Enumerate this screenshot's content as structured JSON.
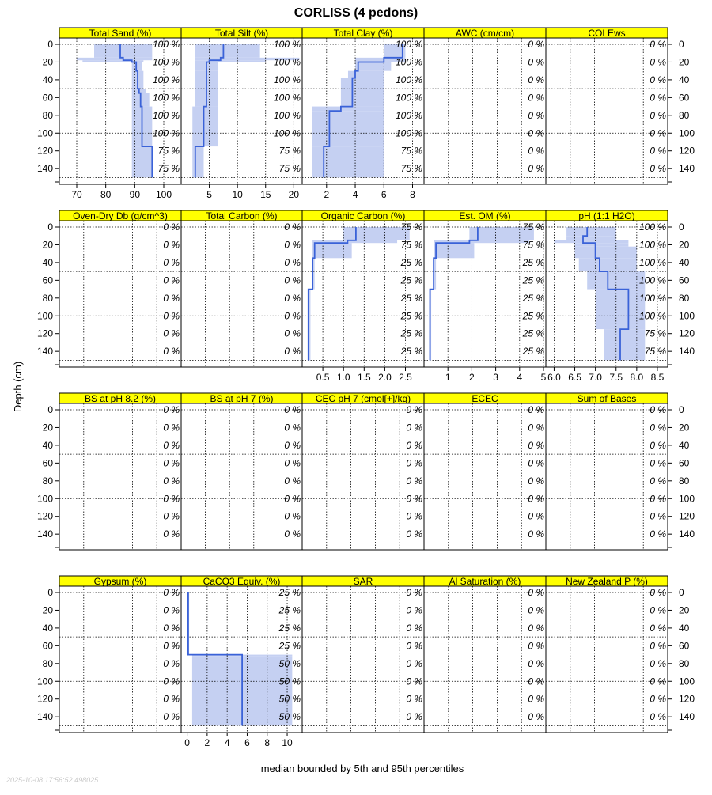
{
  "page": {
    "title": "CORLISS (4 pedons)",
    "ylabel": "Depth (cm)",
    "xlabel": "median bounded by 5th and 95th percentiles",
    "timestamp": "2025-10-08 17:56:52.498025"
  },
  "colors": {
    "strip": "#ffff00",
    "band": "#c5d0f2",
    "median": "#3a62d8",
    "grid": "#000000"
  },
  "chart_data": {
    "type": "line",
    "depth_ticks": [
      0,
      20,
      40,
      60,
      80,
      100,
      120,
      140
    ],
    "ylim": [
      0,
      155
    ],
    "depth_rows": [
      0,
      20,
      40,
      60,
      80,
      100,
      120,
      140
    ],
    "rows": [
      {
        "x_axis_side": "bottom",
        "panels": [
          {
            "label": "Total Sand (%)",
            "xlim": [
              64,
              106
            ],
            "xticks": [
              70,
              80,
              90,
              100
            ],
            "pct": [
              "100 %",
              "100 %",
              "100 %",
              "100 %",
              "100 %",
              "100 %",
              "75 %",
              "75 %"
            ],
            "profile": [
              {
                "top": 0,
                "bottom": 3,
                "p05": 76,
                "p50": 85,
                "p95": 96
              },
              {
                "top": 3,
                "bottom": 15,
                "p05": 76,
                "p50": 85,
                "p95": 96
              },
              {
                "top": 15,
                "bottom": 18,
                "p05": 70,
                "p50": 86,
                "p95": 96
              },
              {
                "top": 18,
                "bottom": 20,
                "p05": 72,
                "p50": 89,
                "p95": 93
              },
              {
                "top": 20,
                "bottom": 30,
                "p05": 89,
                "p50": 90.5,
                "p95": 92.5
              },
              {
                "top": 30,
                "bottom": 50,
                "p05": 89,
                "p50": 91,
                "p95": 93
              },
              {
                "top": 50,
                "bottom": 55,
                "p05": 89,
                "p50": 91.5,
                "p95": 94
              },
              {
                "top": 55,
                "bottom": 70,
                "p05": 89,
                "p50": 92,
                "p95": 95
              },
              {
                "top": 70,
                "bottom": 115,
                "p05": 89,
                "p50": 92.5,
                "p95": 96
              },
              {
                "top": 115,
                "bottom": 150,
                "p05": 89,
                "p50": 96,
                "p95": 96
              }
            ]
          },
          {
            "label": "Total Silt (%)",
            "xlim": [
              0,
              21.5
            ],
            "xticks": [
              5,
              10,
              15,
              20
            ],
            "pct": [
              "100 %",
              "100 %",
              "100 %",
              "100 %",
              "100 %",
              "100 %",
              "75 %",
              "75 %"
            ],
            "profile": [
              {
                "top": 0,
                "bottom": 15,
                "p05": 2.5,
                "p50": 7.5,
                "p95": 14
              },
              {
                "top": 15,
                "bottom": 18,
                "p05": 2.5,
                "p50": 7,
                "p95": 21
              },
              {
                "top": 18,
                "bottom": 20,
                "p05": 2.5,
                "p50": 5,
                "p95": 15
              },
              {
                "top": 20,
                "bottom": 30,
                "p05": 2.5,
                "p50": 4.5,
                "p95": 6.5
              },
              {
                "top": 30,
                "bottom": 70,
                "p05": 2.5,
                "p50": 4.5,
                "p95": 6.5
              },
              {
                "top": 70,
                "bottom": 115,
                "p05": 2,
                "p50": 4,
                "p95": 6.5
              },
              {
                "top": 115,
                "bottom": 150,
                "p05": 2,
                "p50": 2.5,
                "p95": 4
              }
            ]
          },
          {
            "label": "Total Clay (%)",
            "xlim": [
              0.3,
              8.8
            ],
            "xticks": [
              2,
              4,
              6,
              8
            ],
            "pct": [
              "100 %",
              "100 %",
              "100 %",
              "100 %",
              "100 %",
              "100 %",
              "75 %",
              "75 %"
            ],
            "profile": [
              {
                "top": 0,
                "bottom": 15,
                "p05": 6,
                "p50": 7.3,
                "p95": 7.5
              },
              {
                "top": 15,
                "bottom": 20,
                "p05": 4,
                "p50": 6,
                "p95": 7.5
              },
              {
                "top": 20,
                "bottom": 30,
                "p05": 4,
                "p50": 4.2,
                "p95": 6.5
              },
              {
                "top": 30,
                "bottom": 38,
                "p05": 3.5,
                "p50": 4,
                "p95": 6
              },
              {
                "top": 38,
                "bottom": 70,
                "p05": 3,
                "p50": 3.8,
                "p95": 6
              },
              {
                "top": 70,
                "bottom": 75,
                "p05": 1,
                "p50": 3,
                "p95": 6
              },
              {
                "top": 75,
                "bottom": 115,
                "p05": 1,
                "p50": 2.2,
                "p95": 6
              },
              {
                "top": 115,
                "bottom": 150,
                "p05": 1,
                "p50": 1.8,
                "p95": 6
              }
            ]
          },
          {
            "label": "AWC (cm/cm)",
            "xlim": [
              0,
              1
            ],
            "xticks": [],
            "pct": [
              "0 %",
              "0 %",
              "0 %",
              "0 %",
              "0 %",
              "0 %",
              "0 %",
              "0 %"
            ],
            "profile": []
          },
          {
            "label": "COLEws",
            "xlim": [
              0,
              1
            ],
            "xticks": [],
            "pct": [
              "0 %",
              "0 %",
              "0 %",
              "0 %",
              "0 %",
              "0 %",
              "0 %",
              "0 %"
            ],
            "profile": []
          }
        ]
      },
      {
        "x_axis_side": "bottom",
        "panels": [
          {
            "label": "Oven-Dry Db (g/cm^3)",
            "xlim": [
              0,
              1
            ],
            "xticks": [],
            "pct": [
              "0 %",
              "0 %",
              "0 %",
              "0 %",
              "0 %",
              "0 %",
              "0 %",
              "0 %"
            ],
            "profile": []
          },
          {
            "label": "Total Carbon (%)",
            "xlim": [
              0,
              1
            ],
            "xticks": [],
            "pct": [
              "0 %",
              "0 %",
              "0 %",
              "0 %",
              "0 %",
              "0 %",
              "0 %",
              "0 %"
            ],
            "profile": []
          },
          {
            "label": "Organic Carbon (%)",
            "xlim": [
              0,
              2.95
            ],
            "xticks": [
              0.5,
              1.0,
              1.5,
              2.0,
              2.5
            ],
            "xticklabels": [
              "0.5",
              "1.0",
              "1.5",
              "2.0",
              "2.5"
            ],
            "pct": [
              "75 %",
              "75 %",
              "25 %",
              "25 %",
              "25 %",
              "25 %",
              "25 %",
              "25 %"
            ],
            "profile": [
              {
                "top": 0,
                "bottom": 15,
                "p05": 1.0,
                "p50": 1.3,
                "p95": 2.6
              },
              {
                "top": 15,
                "bottom": 18,
                "p05": 0.25,
                "p50": 1.1,
                "p95": 2.3
              },
              {
                "top": 18,
                "bottom": 35,
                "p05": 0.25,
                "p50": 0.3,
                "p95": 1.2
              },
              {
                "top": 35,
                "bottom": 70,
                "p05": 0.25,
                "p50": 0.25,
                "p95": 0.3
              },
              {
                "top": 70,
                "bottom": 150,
                "p05": 0.15,
                "p50": 0.15,
                "p95": 0.2
              }
            ]
          },
          {
            "label": "Est. OM (%)",
            "xlim": [
              0,
              5.1
            ],
            "xticks": [
              1,
              2,
              3,
              4,
              5
            ],
            "pct": [
              "75 %",
              "75 %",
              "25 %",
              "25 %",
              "25 %",
              "25 %",
              "25 %",
              "25 %"
            ],
            "profile": [
              {
                "top": 0,
                "bottom": 15,
                "p05": 1.9,
                "p50": 2.25,
                "p95": 4.6
              },
              {
                "top": 15,
                "bottom": 18,
                "p05": 0.4,
                "p50": 1.9,
                "p95": 4.4
              },
              {
                "top": 18,
                "bottom": 35,
                "p05": 0.4,
                "p50": 0.5,
                "p95": 2.1
              },
              {
                "top": 35,
                "bottom": 70,
                "p05": 0.4,
                "p50": 0.4,
                "p95": 0.5
              },
              {
                "top": 70,
                "bottom": 150,
                "p05": 0.25,
                "p50": 0.25,
                "p95": 0.3
              }
            ]
          },
          {
            "label": "pH (1:1 H2O)",
            "xlim": [
              5.8,
              8.75
            ],
            "xticks": [
              6.0,
              6.5,
              7.0,
              7.5,
              8.0,
              8.5
            ],
            "xticklabels": [
              "6.0",
              "6.5",
              "7.0",
              "7.5",
              "8.0",
              "8.5"
            ],
            "pct": [
              "100 %",
              "100 %",
              "100 %",
              "100 %",
              "100 %",
              "100 %",
              "75 %",
              "75 %"
            ],
            "profile": [
              {
                "top": 0,
                "bottom": 10,
                "p05": 6.3,
                "p50": 6.8,
                "p95": 7.5
              },
              {
                "top": 10,
                "bottom": 15,
                "p05": 6.3,
                "p50": 6.7,
                "p95": 7.5
              },
              {
                "top": 15,
                "bottom": 18,
                "p05": 6.0,
                "p50": 6.7,
                "p95": 7.8
              },
              {
                "top": 18,
                "bottom": 22,
                "p05": 6.5,
                "p50": 7.0,
                "p95": 7.8
              },
              {
                "top": 22,
                "bottom": 35,
                "p05": 6.5,
                "p50": 7.0,
                "p95": 8.0
              },
              {
                "top": 35,
                "bottom": 50,
                "p05": 6.6,
                "p50": 7.1,
                "p95": 8.0
              },
              {
                "top": 50,
                "bottom": 70,
                "p05": 6.8,
                "p50": 7.3,
                "p95": 8.2
              },
              {
                "top": 70,
                "bottom": 115,
                "p05": 7.0,
                "p50": 7.8,
                "p95": 8.2
              },
              {
                "top": 115,
                "bottom": 150,
                "p05": 7.2,
                "p50": 7.6,
                "p95": 8.2
              }
            ]
          }
        ]
      },
      {
        "x_axis_side": "none",
        "panels": [
          {
            "label": "BS at pH 8.2 (%)",
            "xlim": [
              0,
              1
            ],
            "xticks": [],
            "pct": [
              "0 %",
              "0 %",
              "0 %",
              "0 %",
              "0 %",
              "0 %",
              "0 %",
              "0 %"
            ],
            "profile": []
          },
          {
            "label": "BS at pH 7 (%)",
            "xlim": [
              0,
              1
            ],
            "xticks": [],
            "pct": [
              "0 %",
              "0 %",
              "0 %",
              "0 %",
              "0 %",
              "0 %",
              "0 %",
              "0 %"
            ],
            "profile": []
          },
          {
            "label": "CEC pH 7 (cmol[+]/kg)",
            "xlim": [
              0,
              1
            ],
            "xticks": [],
            "pct": [
              "0 %",
              "0 %",
              "0 %",
              "0 %",
              "0 %",
              "0 %",
              "0 %",
              "0 %"
            ],
            "profile": []
          },
          {
            "label": "ECEC",
            "xlim": [
              0,
              1
            ],
            "xticks": [],
            "pct": [
              "0 %",
              "0 %",
              "0 %",
              "0 %",
              "0 %",
              "0 %",
              "0 %",
              "0 %"
            ],
            "profile": []
          },
          {
            "label": "Sum of Bases",
            "xlim": [
              0,
              1
            ],
            "xticks": [],
            "pct": [
              "0 %",
              "0 %",
              "0 %",
              "0 %",
              "0 %",
              "0 %",
              "0 %",
              "0 %"
            ],
            "profile": []
          }
        ]
      },
      {
        "x_axis_side": "bottom",
        "panels": [
          {
            "label": "Gypsum (%)",
            "xlim": [
              0,
              1
            ],
            "xticks": [],
            "pct": [
              "0 %",
              "0 %",
              "0 %",
              "0 %",
              "0 %",
              "0 %",
              "0 %",
              "0 %"
            ],
            "profile": []
          },
          {
            "label": "CaCO3 Equiv. (%)",
            "xlim": [
              -0.6,
              11.5
            ],
            "xticks": [
              0,
              2,
              4,
              6,
              8,
              10
            ],
            "pct": [
              "25 %",
              "25 %",
              "25 %",
              "25 %",
              "50 %",
              "50 %",
              "50 %",
              "50 %"
            ],
            "profile": [
              {
                "top": 0,
                "bottom": 70,
                "p05": 0,
                "p50": 0.1,
                "p95": 0.2
              },
              {
                "top": 70,
                "bottom": 72,
                "p05": 0.5,
                "p50": 5.5,
                "p95": 10.5
              },
              {
                "top": 72,
                "bottom": 150,
                "p05": 0.5,
                "p50": 5.5,
                "p95": 10.5
              }
            ]
          },
          {
            "label": "SAR",
            "xlim": [
              0,
              1
            ],
            "xticks": [],
            "pct": [
              "0 %",
              "0 %",
              "0 %",
              "0 %",
              "0 %",
              "0 %",
              "0 %",
              "0 %"
            ],
            "profile": []
          },
          {
            "label": "Al Saturation (%)",
            "xlim": [
              0,
              1
            ],
            "xticks": [],
            "pct": [
              "0 %",
              "0 %",
              "0 %",
              "0 %",
              "0 %",
              "0 %",
              "0 %",
              "0 %"
            ],
            "profile": []
          },
          {
            "label": "New Zealand P (%)",
            "xlim": [
              0,
              1
            ],
            "xticks": [],
            "pct": [
              "0 %",
              "0 %",
              "0 %",
              "0 %",
              "0 %",
              "0 %",
              "0 %",
              "0 %"
            ],
            "profile": []
          }
        ]
      }
    ]
  }
}
